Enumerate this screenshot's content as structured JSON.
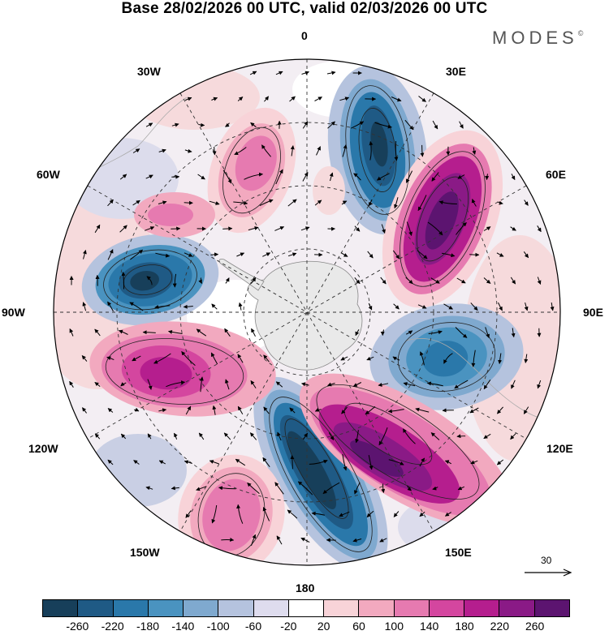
{
  "title": "Base 28/02/2026 00 UTC, valid 02/03/2026 00 UTC",
  "brand": "MODES",
  "brand_mark": "©",
  "longitude_labels": {
    "top": "0",
    "top_right": "30E",
    "right_upper": "60E",
    "right": "90E",
    "right_lower": "120E",
    "bottom_right": "150E",
    "bottom": "180",
    "bottom_left": "150W",
    "left_lower": "120W",
    "left": "90W",
    "left_upper": "60W",
    "top_left": "30W"
  },
  "vector_reference": "30",
  "colorbar": {
    "colors": [
      "#173f5a",
      "#1f5a85",
      "#2a78aa",
      "#4a93c0",
      "#7fa9cf",
      "#b5c3de",
      "#dedcee",
      "#ffffff",
      "#f8d3d8",
      "#f2a9bf",
      "#e67ab0",
      "#d4469f",
      "#b51e8e",
      "#8a1a86",
      "#5c1470"
    ],
    "tick_labels": [
      "-260",
      "-220",
      "-180",
      "-140",
      "-100",
      "-60",
      "-20",
      "20",
      "60",
      "100",
      "140",
      "180",
      "220",
      "260"
    ]
  }
}
